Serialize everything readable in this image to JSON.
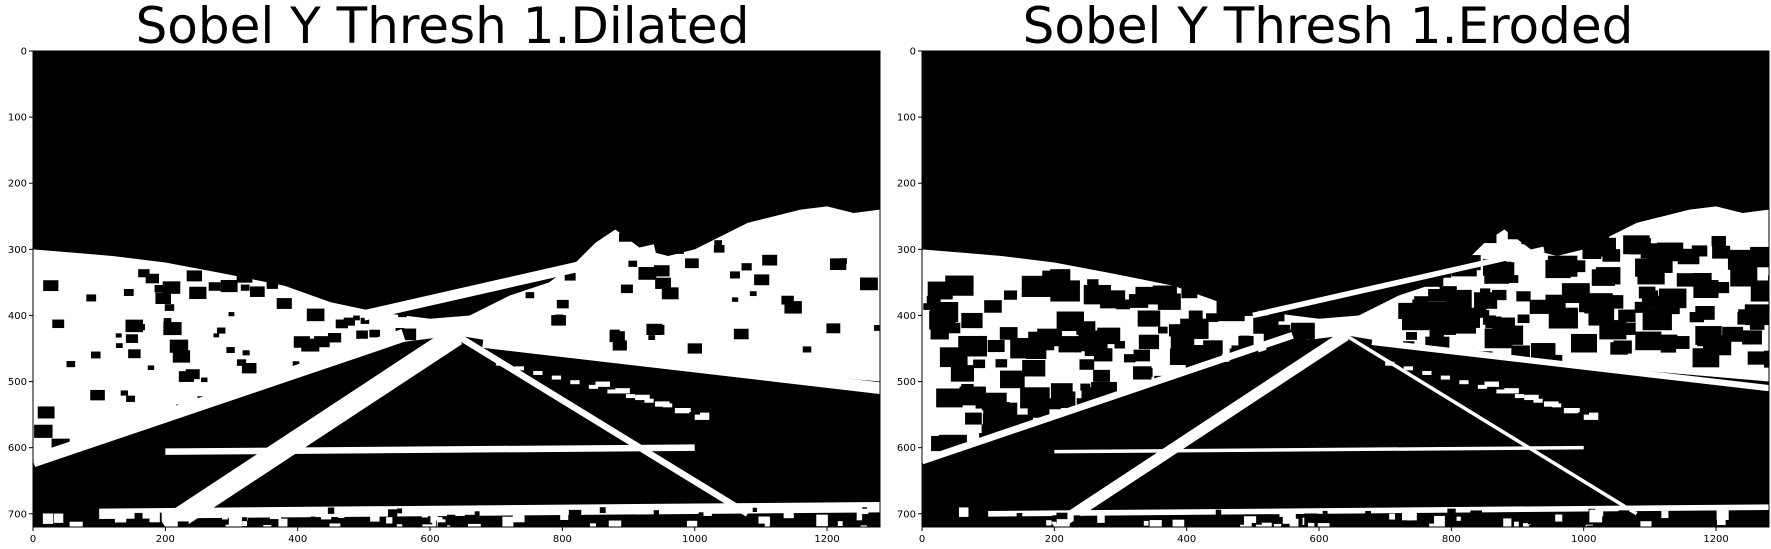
{
  "panels": [
    {
      "title": "Sobel Y Thresh 1.Dilated",
      "variant": "dilated",
      "x_ticks": [
        0,
        200,
        400,
        600,
        800,
        1000,
        1200
      ],
      "y_ticks": [
        0,
        100,
        200,
        300,
        400,
        500,
        600,
        700
      ],
      "xlim": [
        0,
        1280
      ],
      "ylim": [
        720,
        0
      ]
    },
    {
      "title": "Sobel Y Thresh 1.Eroded",
      "variant": "eroded",
      "x_ticks": [
        0,
        200,
        400,
        600,
        800,
        1000,
        1200
      ],
      "y_ticks": [
        0,
        100,
        200,
        300,
        400,
        500,
        600,
        700
      ],
      "xlim": [
        0,
        1280
      ],
      "ylim": [
        720,
        0
      ]
    }
  ],
  "colors": {
    "background": "#000000",
    "foreground": "#ffffff",
    "axis": "#000000"
  }
}
